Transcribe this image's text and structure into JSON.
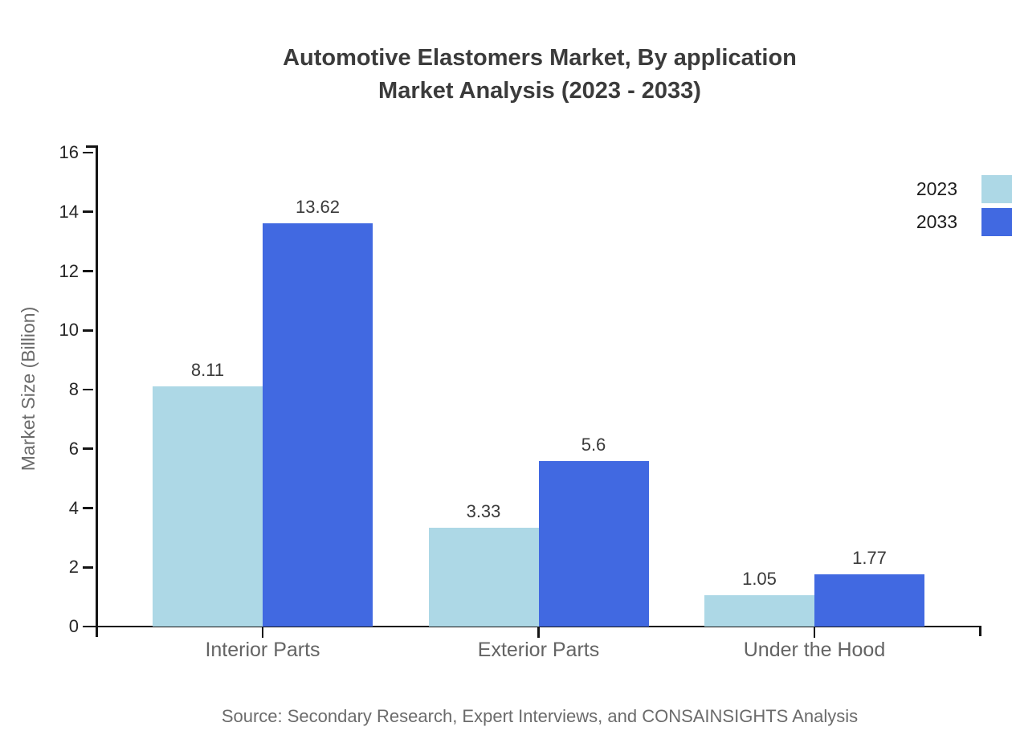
{
  "title": {
    "line1": "Automotive Elastomers Market, By application",
    "line2": "Market Analysis (2023 - 2033)"
  },
  "source": "Source: Secondary Research, Expert Interviews, and CONSAINSIGHTS Analysis",
  "chart_data": {
    "type": "bar",
    "categories": [
      "Interior Parts",
      "Exterior Parts",
      "Under the Hood"
    ],
    "series": [
      {
        "name": "2023",
        "color": "#ADD8E6",
        "values": [
          8.11,
          3.33,
          1.05
        ]
      },
      {
        "name": "2033",
        "color": "#4169E1",
        "values": [
          13.62,
          5.6,
          1.77
        ]
      }
    ],
    "value_labels": {
      "2023": [
        "8.11",
        "3.33",
        "1.05"
      ],
      "2033": [
        "13.62",
        "5.6",
        "1.77"
      ]
    },
    "ylabel": "Market Size (Billion)",
    "ylim": [
      0,
      16
    ],
    "yticks": [
      0,
      2,
      4,
      6,
      8,
      10,
      12,
      14,
      16
    ],
    "grid": false,
    "legend_position": "top-right",
    "axis_color": "#141414",
    "label_color": "#3a3a3a",
    "category_label_color": "#646464"
  }
}
